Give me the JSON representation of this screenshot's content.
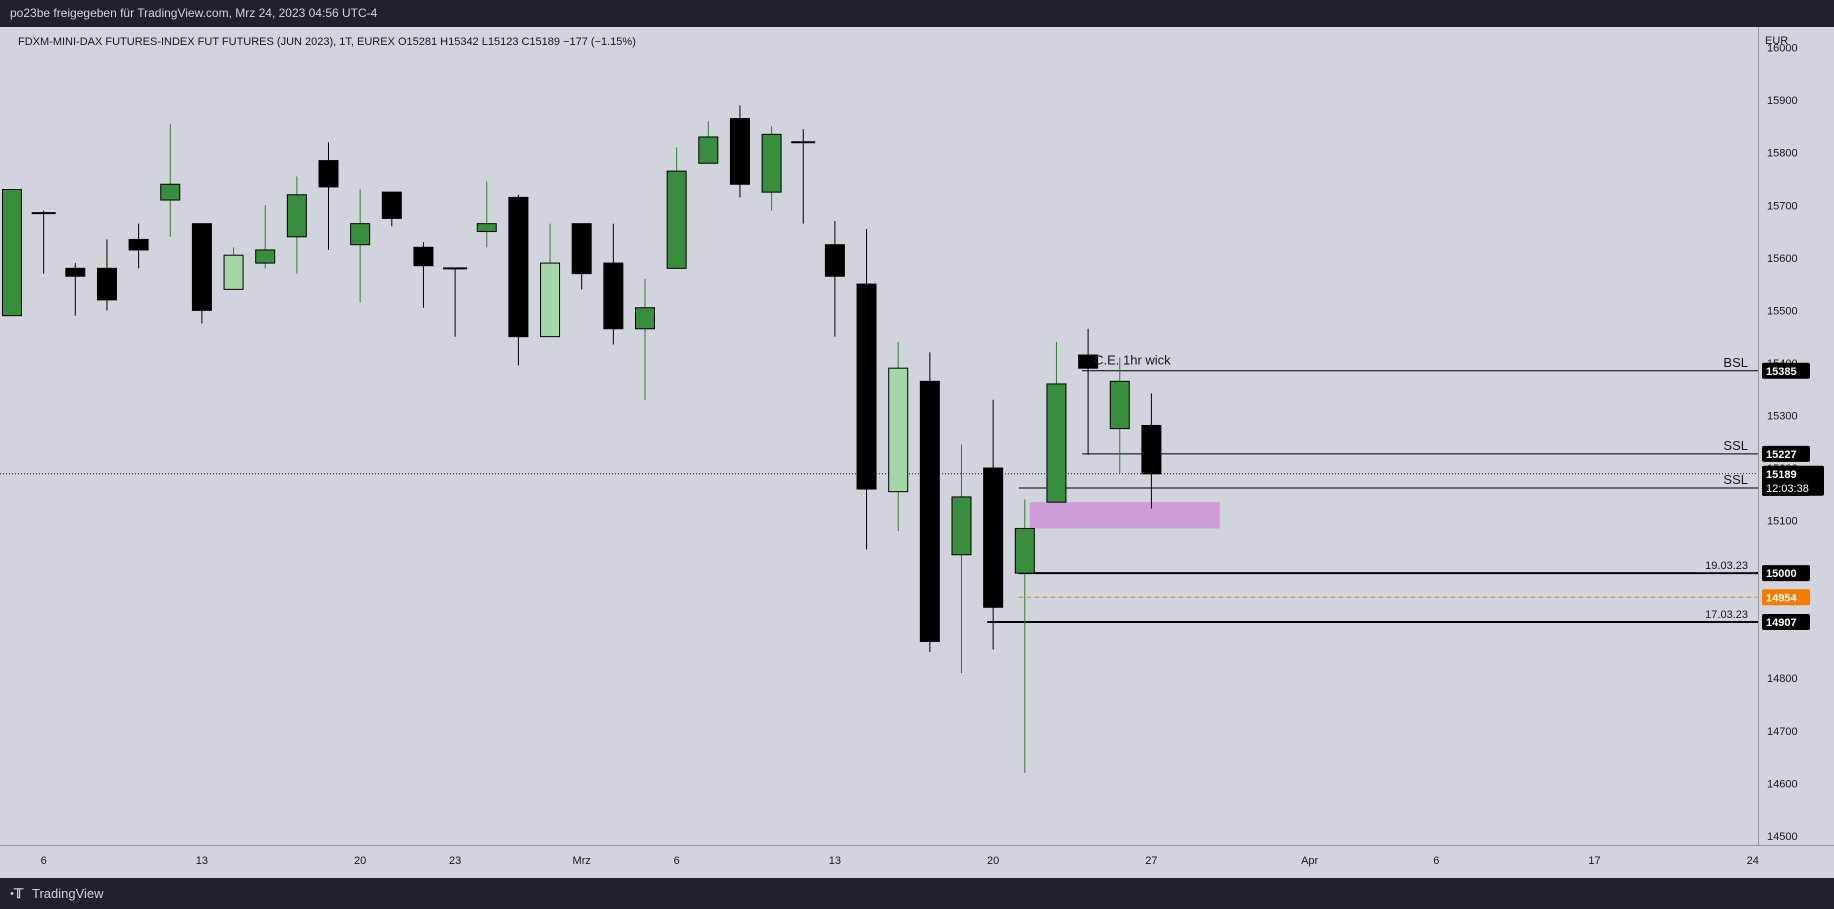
{
  "header": {
    "attribution": "po23be freigegeben für TradingView.com, Mrz 24, 2023 04:56 UTC-4"
  },
  "footer": {
    "brand": "TradingView",
    "logo_icon": "tradingview-logo-icon"
  },
  "colors": {
    "background": "#d1d4dc",
    "bull": "#388e3c",
    "bull_light": "#a5d6a7",
    "bear": "#000000",
    "zone": "#ce93d8",
    "last_price_tag": "#000000",
    "alert_tag": "#f57c00"
  },
  "chart_data": {
    "type": "candlestick",
    "legend": {
      "symbol": "FDXM-MINI-DAX FUTURES-INDEX FUT FUTURES (JUN 2023), 1T, EUREX",
      "open": "O15281",
      "high": "H15342",
      "low": "L15123",
      "close": "C15189",
      "change": "−177 (−1.15%)"
    },
    "currency": "EUR",
    "y_range": [
      14500,
      16000
    ],
    "y_ticks": [
      14500,
      14600,
      14700,
      14800,
      14900,
      15000,
      15100,
      15200,
      15300,
      15400,
      15500,
      15600,
      15700,
      15800,
      15900,
      16000
    ],
    "x_ticks": [
      {
        "label": "6",
        "idx": 1
      },
      {
        "label": "13",
        "idx": 6
      },
      {
        "label": "20",
        "idx": 11
      },
      {
        "label": "23",
        "idx": 14
      },
      {
        "label": "Mrz",
        "idx": 18
      },
      {
        "label": "6",
        "idx": 21
      },
      {
        "label": "13",
        "idx": 26
      },
      {
        "label": "20",
        "idx": 31
      },
      {
        "label": "27",
        "idx": 36
      },
      {
        "label": "Apr",
        "idx": 41
      },
      {
        "label": "6",
        "idx": 45
      },
      {
        "label": "17",
        "idx": 50
      },
      {
        "label": "24",
        "idx": 55
      }
    ],
    "candles": [
      {
        "o": 15490,
        "h": 15730,
        "l": 15490,
        "c": 15730,
        "s": "bull"
      },
      {
        "o": 15685,
        "h": 15690,
        "l": 15570,
        "c": 15670,
        "s": "doji"
      },
      {
        "o": 15580,
        "h": 15590,
        "l": 15490,
        "c": 15565,
        "s": "bear"
      },
      {
        "o": 15580,
        "h": 15635,
        "l": 15500,
        "c": 15520,
        "s": "bear"
      },
      {
        "o": 15635,
        "h": 15665,
        "l": 15580,
        "c": 15615,
        "s": "bear"
      },
      {
        "o": 15710,
        "h": 15855,
        "l": 15640,
        "c": 15740,
        "s": "bull"
      },
      {
        "o": 15665,
        "h": 15665,
        "l": 15475,
        "c": 15500,
        "s": "bear"
      },
      {
        "o": 15540,
        "h": 15620,
        "l": 15540,
        "c": 15605,
        "s": "bull_light"
      },
      {
        "o": 15590,
        "h": 15700,
        "l": 15580,
        "c": 15615,
        "s": "bull"
      },
      {
        "o": 15640,
        "h": 15755,
        "l": 15570,
        "c": 15720,
        "s": "bull"
      },
      {
        "o": 15785,
        "h": 15820,
        "l": 15615,
        "c": 15735,
        "s": "bear"
      },
      {
        "o": 15625,
        "h": 15730,
        "l": 15515,
        "c": 15665,
        "s": "bull"
      },
      {
        "o": 15725,
        "h": 15725,
        "l": 15660,
        "c": 15675,
        "s": "bear"
      },
      {
        "o": 15620,
        "h": 15630,
        "l": 15505,
        "c": 15585,
        "s": "bear"
      },
      {
        "o": 15580,
        "h": 15580,
        "l": 15450,
        "c": 15575,
        "s": "doji"
      },
      {
        "o": 15650,
        "h": 15745,
        "l": 15620,
        "c": 15665,
        "s": "bull"
      },
      {
        "o": 15715,
        "h": 15720,
        "l": 15395,
        "c": 15450,
        "s": "bear"
      },
      {
        "o": 15450,
        "h": 15665,
        "l": 15450,
        "c": 15590,
        "s": "bull_light"
      },
      {
        "o": 15665,
        "h": 15665,
        "l": 15540,
        "c": 15570,
        "s": "bear"
      },
      {
        "o": 15590,
        "h": 15665,
        "l": 15435,
        "c": 15465,
        "s": "bear"
      },
      {
        "o": 15465,
        "h": 15560,
        "l": 15330,
        "c": 15505,
        "s": "bull"
      },
      {
        "o": 15580,
        "h": 15810,
        "l": 15580,
        "c": 15765,
        "s": "bull"
      },
      {
        "o": 15780,
        "h": 15860,
        "l": 15780,
        "c": 15830,
        "s": "bull"
      },
      {
        "o": 15865,
        "h": 15890,
        "l": 15715,
        "c": 15740,
        "s": "bear"
      },
      {
        "o": 15725,
        "h": 15850,
        "l": 15690,
        "c": 15835,
        "s": "bull"
      },
      {
        "o": 15820,
        "h": 15845,
        "l": 15665,
        "c": 15820,
        "s": "doji"
      },
      {
        "o": 15625,
        "h": 15670,
        "l": 15450,
        "c": 15565,
        "s": "bear"
      },
      {
        "o": 15550,
        "h": 15655,
        "l": 15045,
        "c": 15160,
        "s": "bear"
      },
      {
        "o": 15155,
        "h": 15440,
        "l": 15080,
        "c": 15390,
        "s": "bull_light"
      },
      {
        "o": 15365,
        "h": 15420,
        "l": 14850,
        "c": 14870,
        "s": "bear"
      },
      {
        "o": 15035,
        "h": 15245,
        "l": 14810,
        "c": 15145,
        "s": "bull"
      },
      {
        "o": 15200,
        "h": 15330,
        "l": 14855,
        "c": 14935,
        "s": "bear"
      },
      {
        "o": 15000,
        "h": 15140,
        "l": 14620,
        "c": 15085,
        "s": "bull"
      },
      {
        "o": 15135,
        "h": 15440,
        "l": 15135,
        "c": 15360,
        "s": "bull"
      },
      {
        "o": 15415,
        "h": 15465,
        "l": 15225,
        "c": 15390,
        "s": "bear"
      },
      {
        "o": 15275,
        "h": 15410,
        "l": 15190,
        "c": 15365,
        "s": "bull"
      },
      {
        "o": 15281,
        "h": 15342,
        "l": 15123,
        "c": 15189,
        "s": "bear"
      }
    ],
    "price_levels": [
      {
        "price": 15385,
        "label": "BSL",
        "from_idx": 34,
        "tag": "15385",
        "style": "solid"
      },
      {
        "price": 15227,
        "label": "SSL",
        "from_idx": 34,
        "tag": "15227",
        "style": "solid"
      },
      {
        "price": 15162,
        "label": "SSL",
        "from_idx": 32,
        "tag": "15162",
        "style": "solid"
      },
      {
        "price": 15000,
        "label": "19.03.23",
        "from_idx": 32,
        "tag": "15000",
        "style": "bold"
      },
      {
        "price": 14954,
        "label": "",
        "from_idx": 32,
        "tag": "14954",
        "style": "dashed-orange"
      },
      {
        "price": 14907,
        "label": "17.03.23",
        "from_idx": 31,
        "tag": "14907",
        "style": "bold"
      }
    ],
    "zone": {
      "from_idx": 32,
      "to_idx": 38,
      "low": 15085,
      "high": 15135
    },
    "annotation": {
      "text": "C.E. 1hr wick",
      "idx": 34,
      "price": 15405
    },
    "last_price": {
      "price": 15189,
      "tag": "15189",
      "countdown": "12:03:38"
    }
  }
}
